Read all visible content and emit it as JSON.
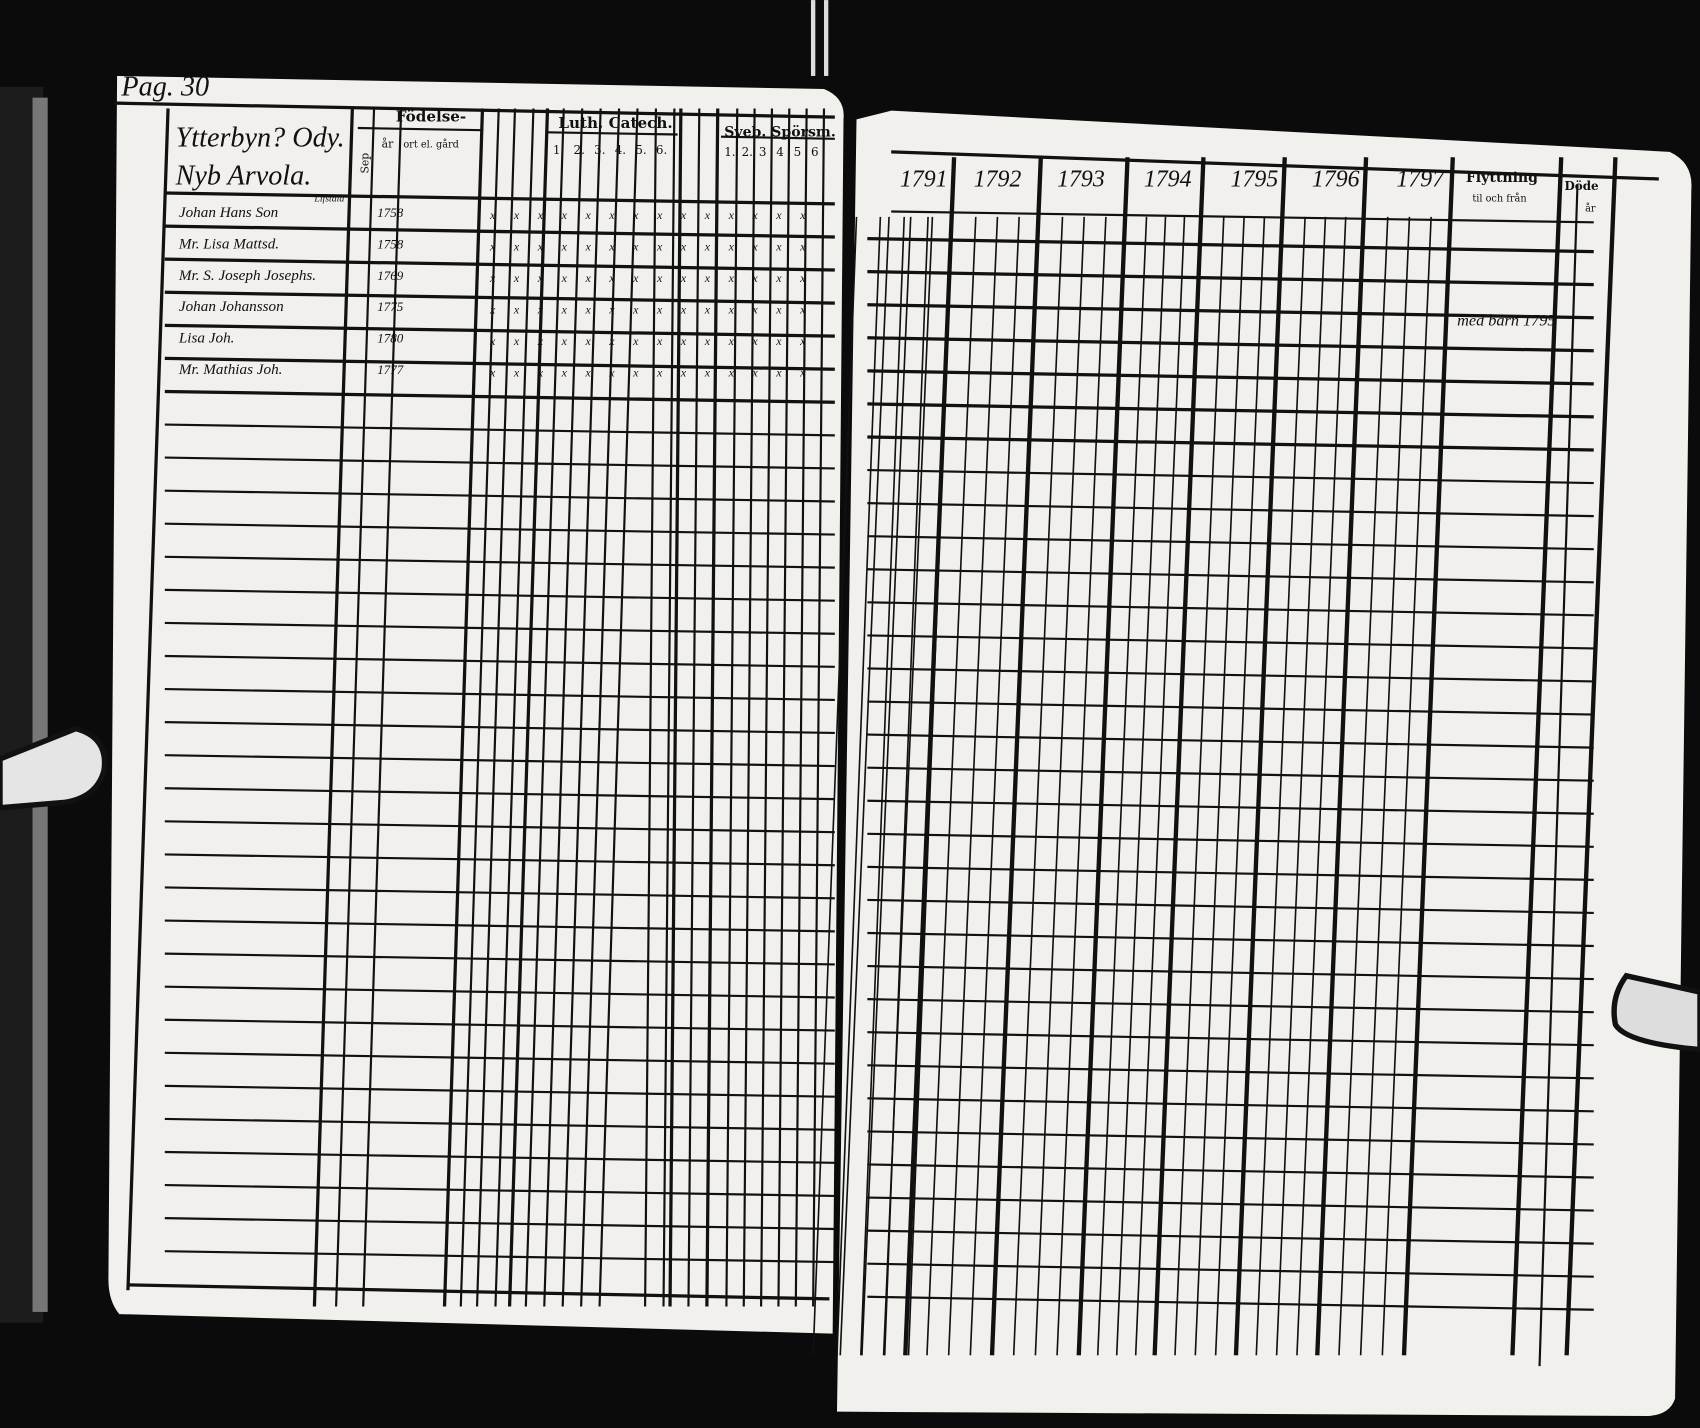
{
  "document": {
    "type": "Swedish parish household examination register (husförhörslängd), two-page spread",
    "colors": {
      "background": "#0b0b0b",
      "paper": "#f1f0ec",
      "ink": "#111111"
    }
  },
  "left_page": {
    "page_number": "Pag. 30",
    "place_heading_line1": "Ytterbyn? Ody.",
    "place_heading_line2": "Nyb Arvola.",
    "header": {
      "fodelse": "Födelse-",
      "sep": "Sep",
      "ar": "år",
      "ort": "ort el. gård",
      "luth_catech": "Luth. Catech.",
      "luth_cols": [
        "1.",
        "2.",
        "3.",
        "4.",
        "5.",
        "6."
      ],
      "sveb_sporsm": "Sveb. Spörsm.",
      "sveb_cols": [
        "1.",
        "2.",
        "3",
        "4",
        "5",
        "6"
      ]
    },
    "entries": [
      {
        "name": "Johan Hans Son",
        "note": "Lifstala",
        "year": "1758"
      },
      {
        "name": "Mr. Lisa Mattsd.",
        "note": "",
        "year": "1758"
      },
      {
        "name": "Mr. S. Joseph Josephs.",
        "note": "",
        "year": "1769"
      },
      {
        "name": "Johan Johansson",
        "note": "",
        "year": "1775"
      },
      {
        "name": "Lisa Joh.",
        "note": "",
        "year": "1780"
      },
      {
        "name": "Mr. Mathias Joh.",
        "note": "",
        "year": "1777"
      }
    ]
  },
  "right_page": {
    "years": [
      "1791",
      "1792",
      "1793",
      "1794",
      "1795",
      "1796",
      "1797"
    ],
    "flyttning": "Flyttning",
    "flyttning_sub": "til och från",
    "dode": "Döde",
    "dode_sub": "år",
    "moving_note": "med barn 1795"
  }
}
